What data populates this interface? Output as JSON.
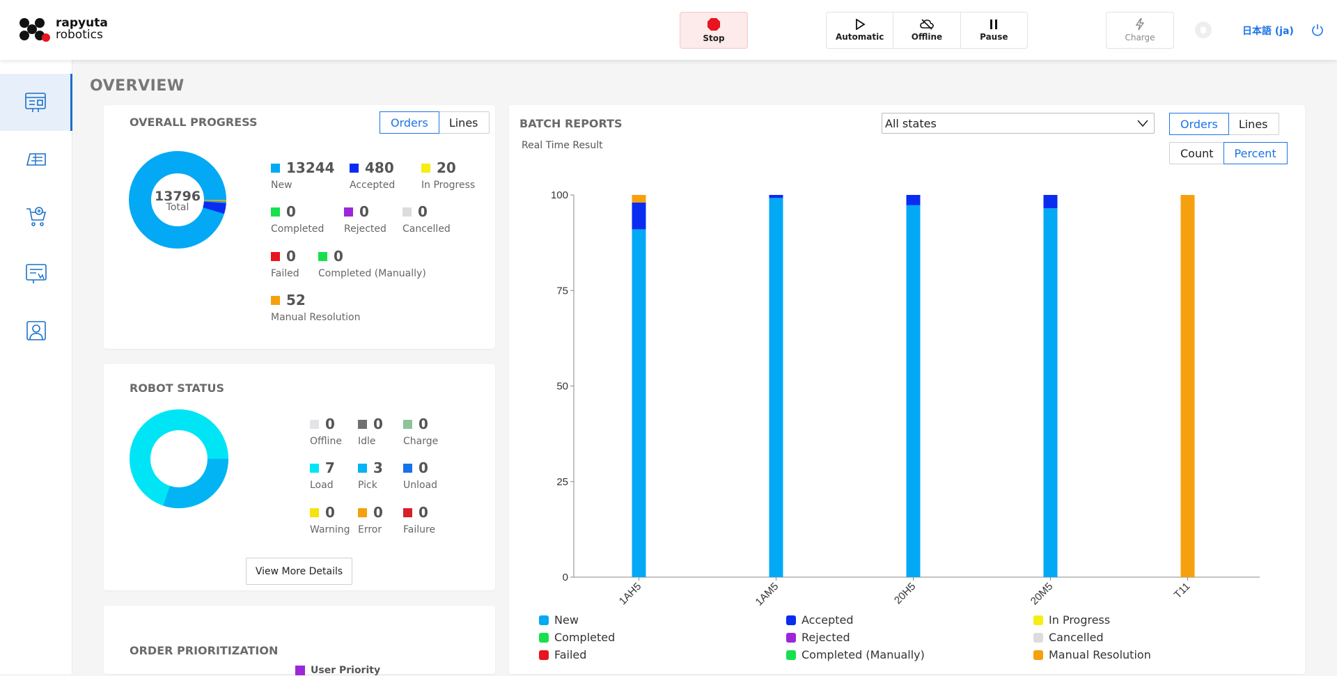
{
  "brand": {
    "line1": "rapyuta",
    "line2": "robotics"
  },
  "topbar": {
    "stop": "Stop",
    "automatic": "Automatic",
    "offline": "Offline",
    "pause": "Pause",
    "charge": "Charge",
    "language": "日本語 (ja)"
  },
  "page_title": "OVERVIEW",
  "overall": {
    "title": "OVERALL PROGRESS",
    "toggle": [
      "Orders",
      "Lines"
    ],
    "total": "13796",
    "total_label": "Total",
    "stats": [
      {
        "value": "13244",
        "label": "New",
        "color": "#03a9f4"
      },
      {
        "value": "480",
        "label": "Accepted",
        "color": "#0a2cf0"
      },
      {
        "value": "20",
        "label": "In Progress",
        "color": "#f5ee14"
      },
      {
        "value": "0",
        "label": "Completed",
        "color": "#17e04f"
      },
      {
        "value": "0",
        "label": "Rejected",
        "color": "#9c27d9"
      },
      {
        "value": "0",
        "label": "Cancelled",
        "color": "#dcdcdc"
      },
      {
        "value": "0",
        "label": "Failed",
        "color": "#e8141e"
      },
      {
        "value": "0",
        "label": "Completed (Manually)",
        "color": "#17e04f"
      },
      {
        "value": "52",
        "label": "Manual Resolution",
        "color": "#f5a00f"
      }
    ]
  },
  "robot": {
    "title": "ROBOT STATUS",
    "stats": [
      {
        "value": "0",
        "label": "Offline",
        "color": "#e2e4e8"
      },
      {
        "value": "0",
        "label": "Idle",
        "color": "#707070"
      },
      {
        "value": "0",
        "label": "Charge",
        "color": "#8cc49a"
      },
      {
        "value": "7",
        "label": "Load",
        "color": "#00e5f5"
      },
      {
        "value": "3",
        "label": "Pick",
        "color": "#03b4f4"
      },
      {
        "value": "0",
        "label": "Unload",
        "color": "#1673e8"
      },
      {
        "value": "0",
        "label": "Warning",
        "color": "#f5e20f"
      },
      {
        "value": "0",
        "label": "Error",
        "color": "#f5a00f"
      },
      {
        "value": "0",
        "label": "Failure",
        "color": "#d6202a"
      }
    ],
    "more_button": "View More Details"
  },
  "priority": {
    "title": "ORDER PRIORITIZATION",
    "legend": "User Priority"
  },
  "batch": {
    "title": "BATCH REPORTS",
    "subtitle": "Real Time Result",
    "filter": "All states",
    "toggle": [
      "Orders",
      "Lines"
    ],
    "mode": [
      "Count",
      "Percent"
    ],
    "legend": [
      {
        "label": "New",
        "color": "#03a9f4"
      },
      {
        "label": "Accepted",
        "color": "#0a2cf0"
      },
      {
        "label": "In Progress",
        "color": "#f5ee14"
      },
      {
        "label": "Completed",
        "color": "#17e04f"
      },
      {
        "label": "Rejected",
        "color": "#9c27d9"
      },
      {
        "label": "Cancelled",
        "color": "#dcdcdc"
      },
      {
        "label": "Failed",
        "color": "#e8141e"
      },
      {
        "label": "Completed (Manually)",
        "color": "#17e04f"
      },
      {
        "label": "Manual Resolution",
        "color": "#f5a00f"
      }
    ]
  },
  "chart_data": {
    "type": "bar",
    "stacked": true,
    "categories": [
      "1AH5",
      "1AM5",
      "20H5",
      "20M5",
      "T11"
    ],
    "series": [
      {
        "name": "New",
        "color": "#03a9f4",
        "values": [
          91,
          99.2,
          97.3,
          96.5,
          0
        ]
      },
      {
        "name": "Accepted",
        "color": "#0a2cf0",
        "values": [
          7,
          0.8,
          2.7,
          3.5,
          0
        ]
      },
      {
        "name": "Manual Resolution",
        "color": "#f5a00f",
        "values": [
          2,
          0,
          0,
          0,
          100
        ]
      }
    ],
    "yticks": [
      0,
      25,
      50,
      75,
      100
    ],
    "ylim": [
      0,
      100
    ]
  }
}
